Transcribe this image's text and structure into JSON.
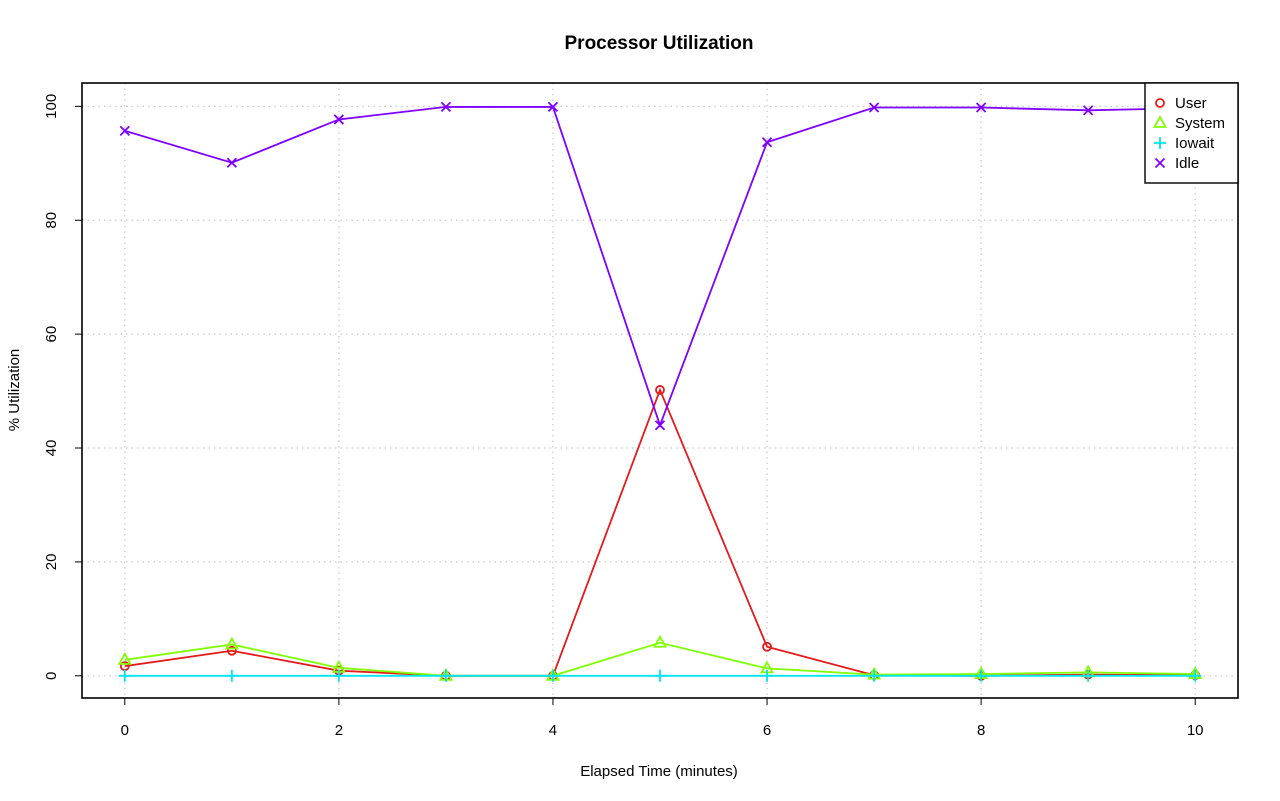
{
  "chart_data": {
    "type": "line",
    "title": "Processor Utilization",
    "xlabel": "Elapsed Time (minutes)",
    "ylabel": "% Utilization",
    "x": [
      0,
      1,
      2,
      3,
      4,
      5,
      6,
      7,
      8,
      9,
      10
    ],
    "xlim": [
      -0.4,
      10.4
    ],
    "ylim": [
      -3.9,
      104.1
    ],
    "x_ticks": [
      0,
      2,
      4,
      6,
      8,
      10
    ],
    "y_ticks": [
      0,
      20,
      40,
      60,
      80,
      100
    ],
    "grid": true,
    "legend_position": "top-right",
    "series": [
      {
        "name": "User",
        "color": "#e41a1c",
        "marker": "circle",
        "values": [
          1.7,
          4.4,
          0.9,
          0,
          0,
          50.2,
          5.1,
          0.1,
          0,
          0.2,
          0.1
        ]
      },
      {
        "name": "System",
        "color": "#7fff00",
        "marker": "triangle",
        "values": [
          2.8,
          5.5,
          1.4,
          0,
          0,
          5.8,
          1.3,
          0.2,
          0.3,
          0.6,
          0.3
        ]
      },
      {
        "name": "Iowait",
        "color": "#00e5ee",
        "marker": "plus",
        "values": [
          0,
          0,
          0,
          0,
          0,
          0,
          0,
          0,
          0,
          0,
          0
        ]
      },
      {
        "name": "Idle",
        "color": "#7f00ff",
        "marker": "cross",
        "values": [
          95.7,
          90.1,
          97.7,
          99.9,
          99.9,
          44.0,
          93.7,
          99.8,
          99.8,
          99.3,
          99.7
        ]
      }
    ]
  }
}
